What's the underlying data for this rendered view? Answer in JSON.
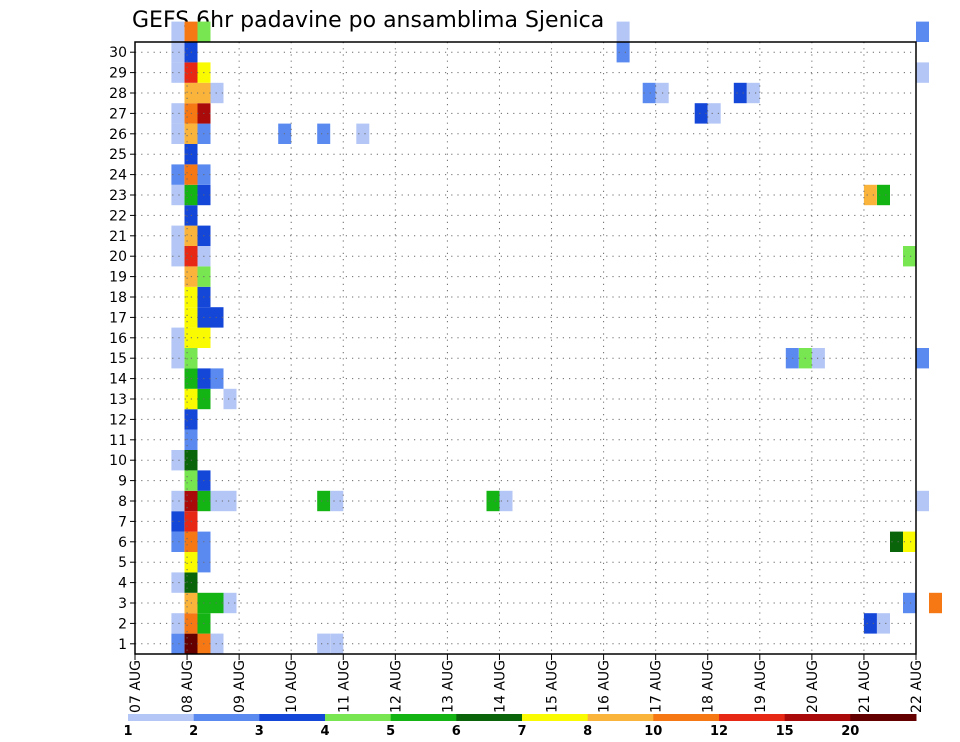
{
  "chart_data": {
    "type": "heatmap",
    "title": "GEFS 6hr padavine po ansamblima Sjenica",
    "y_ticks": [
      "1",
      "2",
      "3",
      "4",
      "5",
      "6",
      "7",
      "8",
      "9",
      "10",
      "11",
      "12",
      "13",
      "14",
      "15",
      "16",
      "17",
      "18",
      "19",
      "20",
      "21",
      "22",
      "23",
      "24",
      "25",
      "26",
      "27",
      "28",
      "29",
      "30"
    ],
    "x_ticks": [
      "07 AUG",
      "08 AUG",
      "09 AUG",
      "10 AUG",
      "11 AUG",
      "12 AUG",
      "13 AUG",
      "14 AUG",
      "15 AUG",
      "16 AUG",
      "17 AUG",
      "18 AUG",
      "19 AUG",
      "20 AUG",
      "21 AUG",
      "22 AUG"
    ],
    "x_range_days": [
      7,
      22
    ],
    "grid": true,
    "colorbar": {
      "labels": [
        "1",
        "2",
        "3",
        "4",
        "5",
        "6",
        "7",
        "8",
        "10",
        "12",
        "15",
        "20"
      ],
      "colors": [
        "#b4c6f5",
        "#5a8af0",
        "#1446d8",
        "#78e650",
        "#14b414",
        "#0a640a",
        "#fafa00",
        "#fab43c",
        "#f57814",
        "#e62814",
        "#aa0a0a",
        "#640000"
      ]
    },
    "cells": [
      {
        "m": 0,
        "t": 0.7,
        "c": 1
      },
      {
        "m": 0,
        "t": 0.95,
        "c": 11
      },
      {
        "m": 0,
        "t": 1.2,
        "c": 8
      },
      {
        "m": 0,
        "t": 1.45,
        "c": 0
      },
      {
        "m": 0,
        "t": 3.5,
        "c": 0
      },
      {
        "m": 0,
        "t": 3.75,
        "c": 0
      },
      {
        "m": 1,
        "t": 0.7,
        "c": 0
      },
      {
        "m": 1,
        "t": 0.95,
        "c": 8
      },
      {
        "m": 1,
        "t": 1.2,
        "c": 4
      },
      {
        "m": 1,
        "t": 14.0,
        "c": 2
      },
      {
        "m": 1,
        "t": 14.25,
        "c": 0
      },
      {
        "m": 2,
        "t": 0.95,
        "c": 7
      },
      {
        "m": 2,
        "t": 1.2,
        "c": 4
      },
      {
        "m": 2,
        "t": 1.45,
        "c": 4
      },
      {
        "m": 2,
        "t": 1.7,
        "c": 0
      },
      {
        "m": 2,
        "t": 14.75,
        "c": 1
      },
      {
        "m": 2,
        "t": 15.25,
        "c": 8
      },
      {
        "m": 3,
        "t": 0.7,
        "c": 0
      },
      {
        "m": 3,
        "t": 0.95,
        "c": 5
      },
      {
        "m": 4,
        "t": 0.95,
        "c": 6
      },
      {
        "m": 4,
        "t": 1.2,
        "c": 1
      },
      {
        "m": 5,
        "t": 0.7,
        "c": 1
      },
      {
        "m": 5,
        "t": 0.95,
        "c": 8
      },
      {
        "m": 5,
        "t": 1.2,
        "c": 1
      },
      {
        "m": 5,
        "t": 14.5,
        "c": 5
      },
      {
        "m": 5,
        "t": 14.75,
        "c": 6
      },
      {
        "m": 6,
        "t": 0.7,
        "c": 2
      },
      {
        "m": 6,
        "t": 0.95,
        "c": 9
      },
      {
        "m": 7,
        "t": 0.7,
        "c": 0
      },
      {
        "m": 7,
        "t": 0.95,
        "c": 10
      },
      {
        "m": 7,
        "t": 1.2,
        "c": 4
      },
      {
        "m": 7,
        "t": 1.45,
        "c": 0
      },
      {
        "m": 7,
        "t": 1.7,
        "c": 0
      },
      {
        "m": 7,
        "t": 3.5,
        "c": 4
      },
      {
        "m": 7,
        "t": 3.75,
        "c": 0
      },
      {
        "m": 7,
        "t": 6.75,
        "c": 4
      },
      {
        "m": 7,
        "t": 7.0,
        "c": 0
      },
      {
        "m": 7,
        "t": 15.0,
        "c": 0
      },
      {
        "m": 8,
        "t": 0.95,
        "c": 3
      },
      {
        "m": 8,
        "t": 1.2,
        "c": 2
      },
      {
        "m": 9,
        "t": 0.7,
        "c": 0
      },
      {
        "m": 9,
        "t": 0.95,
        "c": 5
      },
      {
        "m": 10,
        "t": 0.95,
        "c": 1
      },
      {
        "m": 11,
        "t": 0.95,
        "c": 2
      },
      {
        "m": 12,
        "t": 0.95,
        "c": 6
      },
      {
        "m": 12,
        "t": 1.2,
        "c": 4
      },
      {
        "m": 12,
        "t": 1.7,
        "c": 0
      },
      {
        "m": 13,
        "t": 0.95,
        "c": 4
      },
      {
        "m": 13,
        "t": 1.2,
        "c": 2
      },
      {
        "m": 13,
        "t": 1.45,
        "c": 1
      },
      {
        "m": 14,
        "t": 0.7,
        "c": 0
      },
      {
        "m": 14,
        "t": 0.95,
        "c": 3
      },
      {
        "m": 14,
        "t": 12.5,
        "c": 1
      },
      {
        "m": 14,
        "t": 12.75,
        "c": 3
      },
      {
        "m": 14,
        "t": 13.0,
        "c": 0
      },
      {
        "m": 14,
        "t": 15.0,
        "c": 1
      },
      {
        "m": 15,
        "t": 0.7,
        "c": 0
      },
      {
        "m": 15,
        "t": 0.95,
        "c": 6
      },
      {
        "m": 15,
        "t": 1.2,
        "c": 6
      },
      {
        "m": 16,
        "t": 0.95,
        "c": 6
      },
      {
        "m": 16,
        "t": 1.2,
        "c": 2
      },
      {
        "m": 16,
        "t": 1.45,
        "c": 2
      },
      {
        "m": 17,
        "t": 0.95,
        "c": 6
      },
      {
        "m": 17,
        "t": 1.2,
        "c": 2
      },
      {
        "m": 18,
        "t": 0.95,
        "c": 7
      },
      {
        "m": 18,
        "t": 1.2,
        "c": 3
      },
      {
        "m": 19,
        "t": 0.7,
        "c": 0
      },
      {
        "m": 19,
        "t": 0.95,
        "c": 9
      },
      {
        "m": 19,
        "t": 1.2,
        "c": 0
      },
      {
        "m": 19,
        "t": 14.75,
        "c": 3
      },
      {
        "m": 20,
        "t": 0.7,
        "c": 0
      },
      {
        "m": 20,
        "t": 0.95,
        "c": 7
      },
      {
        "m": 20,
        "t": 1.2,
        "c": 2
      },
      {
        "m": 21,
        "t": 0.95,
        "c": 2
      },
      {
        "m": 22,
        "t": 0.7,
        "c": 0
      },
      {
        "m": 22,
        "t": 0.95,
        "c": 4
      },
      {
        "m": 22,
        "t": 1.2,
        "c": 2
      },
      {
        "m": 22,
        "t": 14.0,
        "c": 7
      },
      {
        "m": 22,
        "t": 14.25,
        "c": 4
      },
      {
        "m": 23,
        "t": 0.7,
        "c": 1
      },
      {
        "m": 23,
        "t": 0.95,
        "c": 8
      },
      {
        "m": 23,
        "t": 1.2,
        "c": 1
      },
      {
        "m": 24,
        "t": 0.95,
        "c": 2
      },
      {
        "m": 25,
        "t": 0.7,
        "c": 0
      },
      {
        "m": 25,
        "t": 0.95,
        "c": 7
      },
      {
        "m": 25,
        "t": 1.2,
        "c": 1
      },
      {
        "m": 25,
        "t": 2.75,
        "c": 1
      },
      {
        "m": 25,
        "t": 3.5,
        "c": 1
      },
      {
        "m": 25,
        "t": 4.25,
        "c": 0
      },
      {
        "m": 26,
        "t": 0.7,
        "c": 0
      },
      {
        "m": 26,
        "t": 0.95,
        "c": 8
      },
      {
        "m": 26,
        "t": 1.2,
        "c": 10
      },
      {
        "m": 26,
        "t": 10.75,
        "c": 2
      },
      {
        "m": 26,
        "t": 11.0,
        "c": 0
      },
      {
        "m": 27,
        "t": 0.95,
        "c": 7
      },
      {
        "m": 27,
        "t": 1.2,
        "c": 7
      },
      {
        "m": 27,
        "t": 1.45,
        "c": 0
      },
      {
        "m": 27,
        "t": 9.75,
        "c": 1
      },
      {
        "m": 27,
        "t": 10.0,
        "c": 0
      },
      {
        "m": 27,
        "t": 11.5,
        "c": 2
      },
      {
        "m": 27,
        "t": 11.75,
        "c": 0
      },
      {
        "m": 28,
        "t": 0.7,
        "c": 0
      },
      {
        "m": 28,
        "t": 0.95,
        "c": 9
      },
      {
        "m": 28,
        "t": 1.2,
        "c": 6
      },
      {
        "m": 28,
        "t": 15.0,
        "c": 0
      },
      {
        "m": 29,
        "t": 0.7,
        "c": 0
      },
      {
        "m": 29,
        "t": 0.95,
        "c": 2
      },
      {
        "m": 29,
        "t": 9.25,
        "c": 1
      },
      {
        "m": 30,
        "t": 0.7,
        "c": 0
      },
      {
        "m": 30,
        "t": 0.95,
        "c": 8
      },
      {
        "m": 30,
        "t": 1.2,
        "c": 3
      },
      {
        "m": 30,
        "t": 9.25,
        "c": 0
      },
      {
        "m": 30,
        "t": 15.0,
        "c": 1
      }
    ]
  }
}
